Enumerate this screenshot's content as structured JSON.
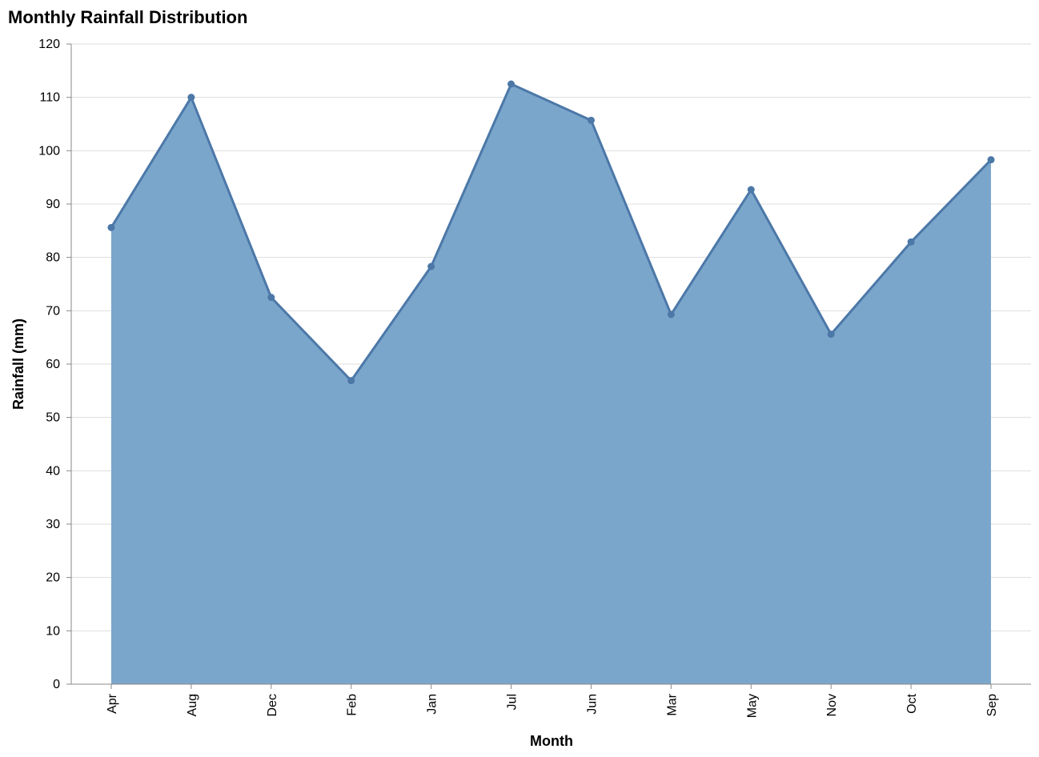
{
  "chart_data": {
    "type": "area",
    "title": "Monthly Rainfall Distribution",
    "xlabel": "Month",
    "ylabel": "Rainfall (mm)",
    "categories": [
      "Apr",
      "Aug",
      "Dec",
      "Feb",
      "Jan",
      "Jul",
      "Jun",
      "Mar",
      "May",
      "Nov",
      "Oct",
      "Sep"
    ],
    "values": [
      85.6,
      110.0,
      72.5,
      56.9,
      78.3,
      112.5,
      105.7,
      69.3,
      92.7,
      65.6,
      82.9,
      98.3
    ],
    "ylim": [
      0,
      120
    ],
    "yticks": [
      0,
      10,
      20,
      30,
      40,
      50,
      60,
      70,
      80,
      90,
      100,
      110,
      120
    ],
    "grid": true,
    "points": true,
    "colors": {
      "area": "#7ba6cb",
      "line": "#4c78a8",
      "grid": "#dddddd",
      "axis": "#888888"
    }
  }
}
